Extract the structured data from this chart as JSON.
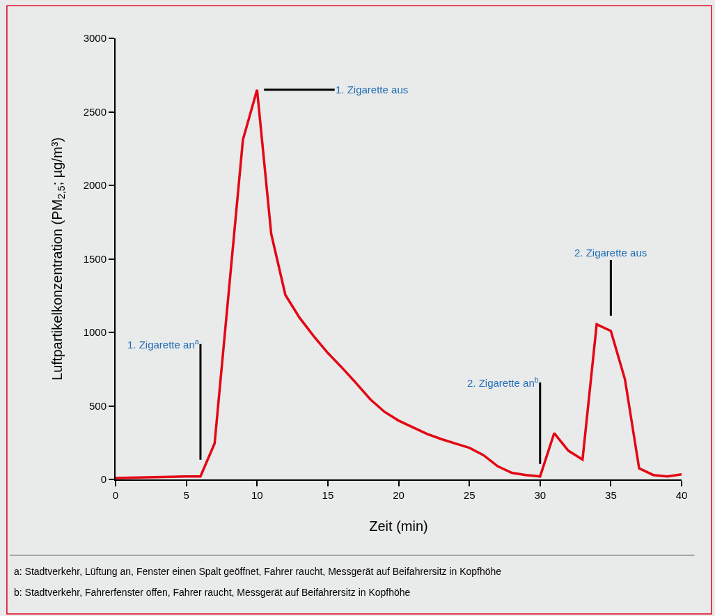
{
  "chart_data": {
    "type": "line",
    "xlabel": "Zeit (min)",
    "ylabel": "Luftpartikelkonzentration (PM$_{2,5}$; µg/m³)",
    "x": [
      0,
      5,
      6,
      7,
      9,
      10,
      11,
      12,
      13,
      14,
      15,
      16,
      17,
      18,
      19,
      20,
      21,
      22,
      23,
      24,
      25,
      26,
      27,
      28,
      29,
      30,
      31,
      32,
      33,
      34,
      35,
      36,
      37,
      38,
      39,
      40
    ],
    "series": [
      {
        "color": "#e30613",
        "values": [
          10,
          20,
          20,
          245,
          2310,
          2650,
          1670,
          1255,
          1100,
          975,
          860,
          760,
          655,
          545,
          460,
          400,
          355,
          310,
          275,
          245,
          215,
          165,
          90,
          45,
          30,
          20,
          315,
          195,
          135,
          1055,
          1010,
          680,
          75,
          30,
          20,
          35
        ]
      }
    ],
    "xlim": [
      0,
      40
    ],
    "xticks": [
      0,
      5,
      10,
      15,
      20,
      25,
      30,
      35,
      40
    ],
    "ylim": [
      0,
      3000
    ],
    "yticks": [
      0,
      500,
      1000,
      1500,
      2000,
      2500,
      3000
    ],
    "grid": false,
    "marker": "none",
    "line_style": "solid",
    "annotations": [
      {
        "text": "1. Zigarette an$^{a}$",
        "x": 6,
        "y": 20
      },
      {
        "text": "1. Zigarette aus",
        "x": 10,
        "y": 2650
      },
      {
        "text": "2. Zigarette an$^{b}$",
        "x": 30,
        "y": 20
      },
      {
        "text": "2. Zigarette aus",
        "x": 35,
        "y": 1010
      },
      "a: Stadtverkehr, Lüftung an, Fenster einen Spalt geöffnet, Fahrer raucht, Messgerät auf Beifahrersitz in Kopfhöhe",
      "b: Stadtverkehr, Fahrerfenster offen, Fahrer raucht, Messgerät auf Beifahrersitz in Kopfhöhe"
    ]
  }
}
